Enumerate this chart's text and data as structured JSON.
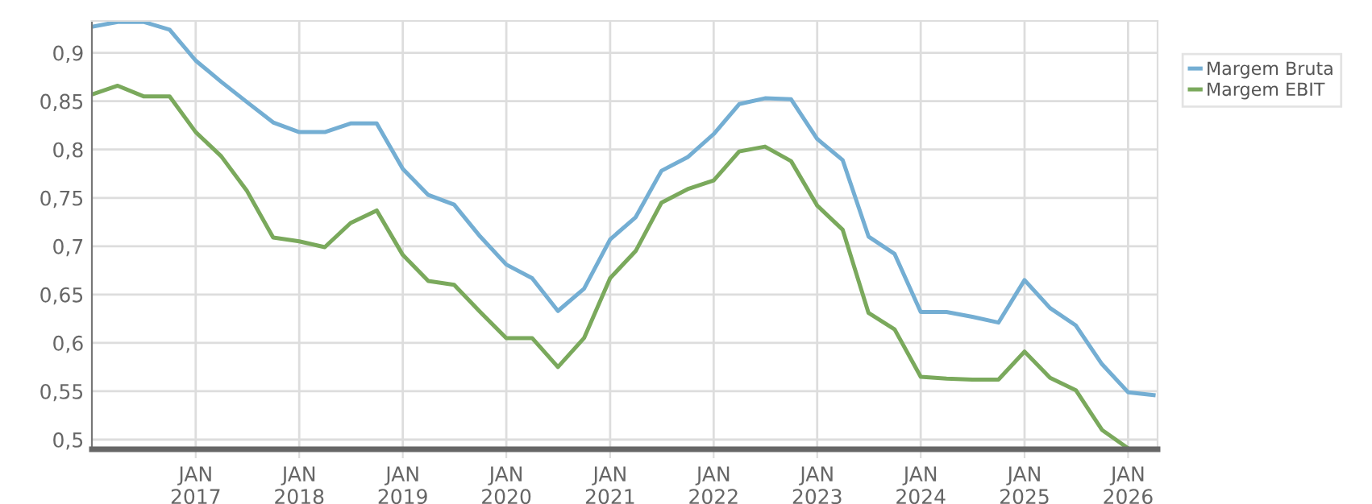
{
  "chart_data": {
    "type": "line",
    "x": [
      "2016-01-01",
      "2016-04-01",
      "2016-07-01",
      "2016-10-01",
      "2017-01-01",
      "2017-04-01",
      "2017-07-01",
      "2017-10-01",
      "2018-01-01",
      "2018-04-01",
      "2018-07-01",
      "2018-10-01",
      "2019-01-01",
      "2019-04-01",
      "2019-07-01",
      "2019-10-01",
      "2020-01-01",
      "2020-04-01",
      "2020-07-01",
      "2020-10-01",
      "2021-01-01",
      "2021-04-01",
      "2021-07-01",
      "2021-10-01",
      "2022-01-01",
      "2022-04-01",
      "2022-07-01",
      "2022-10-01",
      "2023-01-01",
      "2023-04-01",
      "2023-07-01",
      "2023-10-01",
      "2024-01-01",
      "2024-04-01",
      "2024-07-01",
      "2024-10-01",
      "2025-01-01",
      "2025-04-01",
      "2025-07-01",
      "2025-10-01",
      "2026-01-01",
      "2026-04-01"
    ],
    "series": [
      {
        "name": "Margem Bruta",
        "color": "#74aed3",
        "values": [
          0.927,
          0.932,
          0.932,
          0.924,
          0.892,
          0.87,
          0.849,
          0.828,
          0.818,
          0.818,
          0.827,
          0.827,
          0.78,
          0.753,
          0.743,
          0.71,
          0.681,
          0.667,
          0.633,
          0.656,
          0.707,
          0.73,
          0.778,
          0.792,
          0.816,
          0.847,
          0.853,
          0.852,
          0.811,
          0.789,
          0.71,
          0.692,
          0.632,
          0.632,
          0.627,
          0.621,
          0.665,
          0.636,
          0.618,
          0.578,
          0.549,
          0.546
        ]
      },
      {
        "name": "Margem EBIT",
        "color": "#7aa95c",
        "values": [
          0.857,
          0.866,
          0.855,
          0.855,
          0.818,
          0.793,
          0.757,
          0.709,
          0.705,
          0.699,
          0.724,
          0.737,
          0.691,
          0.664,
          0.66,
          0.632,
          0.605,
          0.605,
          0.575,
          0.605,
          0.667,
          0.695,
          0.745,
          0.759,
          0.768,
          0.798,
          0.803,
          0.788,
          0.742,
          0.717,
          0.631,
          0.614,
          0.565,
          0.563,
          0.562,
          0.562,
          0.591,
          0.564,
          0.551,
          0.51,
          0.491,
          null
        ]
      }
    ],
    "xlim": [
      "2016-01-01",
      "2026-04-15"
    ],
    "xticks": [
      {
        "value": "2017-01-01",
        "label": "JAN\n2017"
      },
      {
        "value": "2018-01-01",
        "label": "JAN\n2018"
      },
      {
        "value": "2019-01-01",
        "label": "JAN\n2019"
      },
      {
        "value": "2020-01-01",
        "label": "JAN\n2020"
      },
      {
        "value": "2021-01-01",
        "label": "JAN\n2021"
      },
      {
        "value": "2022-01-01",
        "label": "JAN\n2022"
      },
      {
        "value": "2023-01-01",
        "label": "JAN\n2023"
      },
      {
        "value": "2024-01-01",
        "label": "JAN\n2024"
      },
      {
        "value": "2025-01-01",
        "label": "JAN\n2025"
      },
      {
        "value": "2026-01-01",
        "label": "JAN\n2026"
      }
    ],
    "ylim": [
      0.49,
      0.933
    ],
    "yticks": [
      {
        "value": 0.5,
        "label": "0,5"
      },
      {
        "value": 0.55,
        "label": "0,55"
      },
      {
        "value": 0.6,
        "label": "0,6"
      },
      {
        "value": 0.65,
        "label": "0,65"
      },
      {
        "value": 0.7,
        "label": "0,7"
      },
      {
        "value": 0.75,
        "label": "0,75"
      },
      {
        "value": 0.8,
        "label": "0,8"
      },
      {
        "value": 0.85,
        "label": "0,85"
      },
      {
        "value": 0.9,
        "label": "0,9"
      }
    ],
    "grid": true,
    "legend": "top right",
    "marker": "none",
    "line_style": "solid"
  }
}
